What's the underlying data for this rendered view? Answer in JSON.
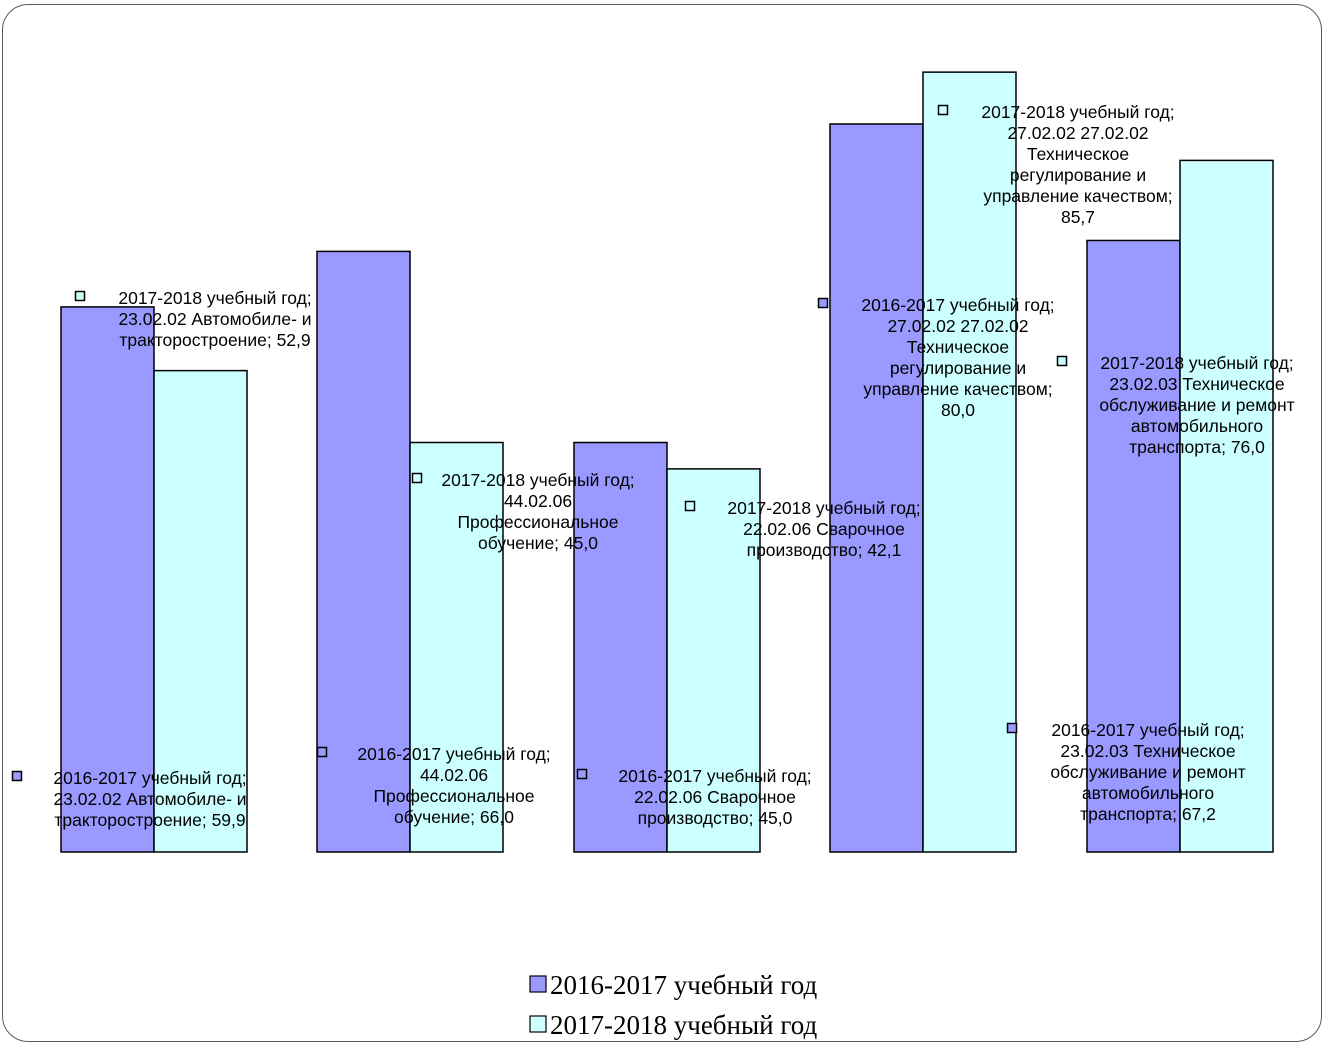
{
  "chart_data": {
    "type": "bar",
    "categories": [
      "23.02.02 Автомобиле- и тракторостроение",
      "44.02.06 Профессиональное обучение",
      "22.02.06 Сварочное производство",
      "27.02.02 27.02.02 Техническое регулирование и управление качеством",
      "23.02.03 Техническое обслуживание и ремонт автомобильного транспорта"
    ],
    "series": [
      {
        "name": "2016-2017 учебный год",
        "color": "#9999ff",
        "values": [
          59.9,
          66.0,
          45.0,
          80.0,
          67.2
        ],
        "labels": [
          [
            "2016-2017 учебный год;",
            "23.02.02 Автомобиле- и",
            "тракторостроение; 59,9"
          ],
          [
            "2016-2017 учебный год;",
            "44.02.06",
            "Профессиональное",
            "обучение; 66,0"
          ],
          [
            "2016-2017 учебный год;",
            "22.02.06 Сварочное",
            "производство; 45,0"
          ],
          [
            "2016-2017 учебный год;",
            "27.02.02 27.02.02",
            "Техническое",
            "регулирование и",
            "управление качеством;",
            "80,0"
          ],
          [
            "2016-2017 учебный год;",
            "23.02.03 Техническое",
            "обслуживание и ремонт",
            "автомобильного",
            "транспорта; 67,2"
          ]
        ]
      },
      {
        "name": "2017-2018 учебный год",
        "color": "#ccffff",
        "values": [
          52.9,
          45.0,
          42.1,
          85.7,
          76.0
        ],
        "labels": [
          [
            "2017-2018 учебный год;",
            "23.02.02 Автомобиле- и",
            "тракторостроение; 52,9"
          ],
          [
            "2017-2018 учебный год;",
            "44.02.06",
            "Профессиональное",
            "обучение; 45,0"
          ],
          [
            "2017-2018 учебный год;",
            "22.02.06 Сварочное",
            "производство; 42,1"
          ],
          [
            "2017-2018 учебный год;",
            "27.02.02 27.02.02",
            "Техническое",
            "регулирование и",
            "управление качеством;",
            "85,7"
          ],
          [
            "2017-2018 учебный год;",
            "23.02.03 Техническое",
            "обслуживание и ремонт",
            "автомобильного",
            "транспорта; 76,0"
          ]
        ]
      }
    ],
    "legend": [
      "2016-2017 учебный год",
      "2017-2018 учебный год"
    ],
    "legend_position": "bottom",
    "grid": false
  }
}
